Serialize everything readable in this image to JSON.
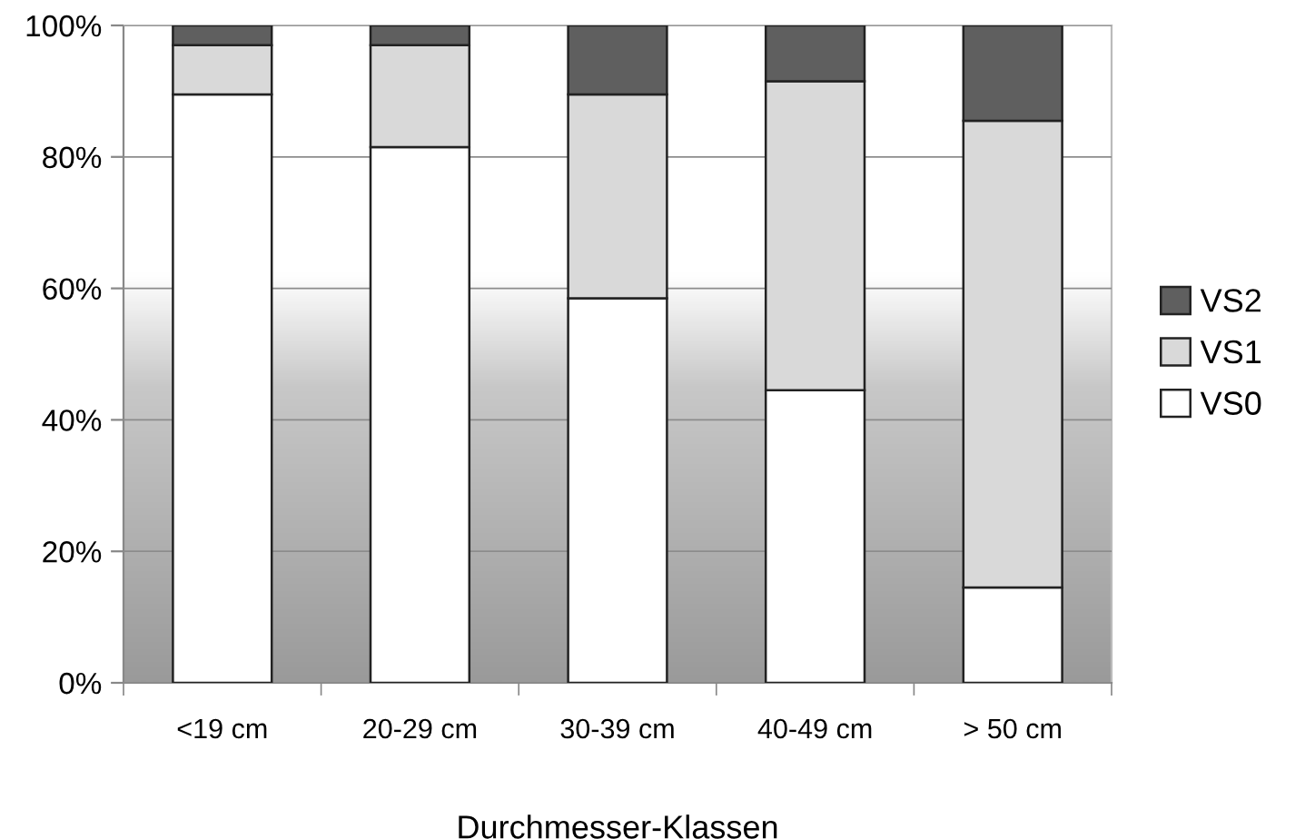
{
  "chart_data": {
    "type": "bar",
    "stacked": true,
    "xlabel": "Durchmesser-Klassen",
    "categories": [
      "<19 cm",
      "20-29 cm",
      "30-39 cm",
      "40-49 cm",
      "> 50 cm"
    ],
    "series": [
      {
        "name": "VS0",
        "color": "#ffffff",
        "values": [
          89.5,
          81.5,
          58.5,
          44.5,
          14.5
        ]
      },
      {
        "name": "VS1",
        "color": "#d9d9d9",
        "values": [
          7.5,
          15.5,
          31,
          47,
          71
        ]
      },
      {
        "name": "VS2",
        "color": "#5f5f5f",
        "values": [
          3,
          3,
          10.5,
          8.5,
          14.5
        ]
      }
    ],
    "ylim": [
      0,
      100
    ],
    "yticks": [
      {
        "value": 0,
        "label": "0%"
      },
      {
        "value": 20,
        "label": "20%"
      },
      {
        "value": 40,
        "label": "40%"
      },
      {
        "value": 60,
        "label": "60%"
      },
      {
        "value": 80,
        "label": "80%"
      },
      {
        "value": 100,
        "label": "100%"
      }
    ],
    "grid": "y",
    "legend": "right"
  }
}
